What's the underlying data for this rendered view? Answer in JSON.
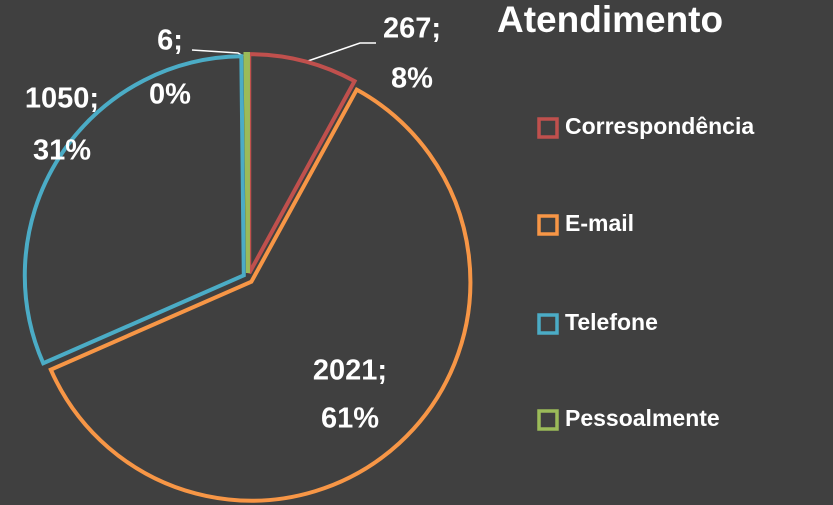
{
  "chart_data": {
    "type": "pie",
    "title": "Atendimento",
    "categories": [
      "Correspondência",
      "E-mail",
      "Telefone",
      "Pessoalmente"
    ],
    "values": [
      267,
      2021,
      1050,
      6
    ],
    "value_labels": [
      "267;",
      "2021;",
      "1050;",
      "6;"
    ],
    "percent_labels": [
      "8%",
      "61%",
      "31%",
      "0%"
    ],
    "colors": [
      "#c0504d",
      "#f79646",
      "#4bacc6",
      "#9bbb59"
    ],
    "legend": "right"
  }
}
